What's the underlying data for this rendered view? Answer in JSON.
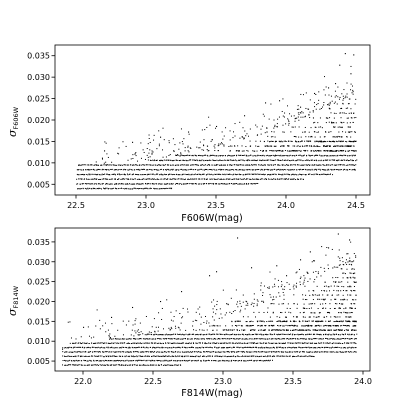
{
  "chart_data": [
    {
      "type": "scatter",
      "title": "",
      "xlabel": "F606W(mag)",
      "ylabel_symbol": "σ",
      "ylabel_subscript": "F606W",
      "xlim": [
        22.35,
        24.6
      ],
      "ylim": [
        0.0025,
        0.0375
      ],
      "xticks": [
        "22.5",
        "23.0",
        "23.5",
        "24.0",
        "24.5"
      ],
      "yticks": [
        "0.005",
        "0.010",
        "0.015",
        "0.020",
        "0.025",
        "0.030",
        "0.035"
      ],
      "grid": false,
      "marker_color": "#000000",
      "x_range_data": [
        22.5,
        24.5
      ],
      "sigma_floor": [
        [
          22.5,
          0.004
        ],
        [
          23.0,
          0.004
        ],
        [
          23.5,
          0.0048
        ],
        [
          24.0,
          0.0058
        ],
        [
          24.5,
          0.0085
        ]
      ],
      "sigma_ceiling": [
        [
          22.5,
          0.0095
        ],
        [
          23.0,
          0.0105
        ],
        [
          23.5,
          0.0135
        ],
        [
          24.0,
          0.0185
        ],
        [
          24.5,
          0.026
        ]
      ],
      "outliers": [
        [
          24.42,
          0.0355
        ],
        [
          24.48,
          0.0352
        ],
        [
          24.38,
          0.0328
        ],
        [
          24.46,
          0.0308
        ],
        [
          24.35,
          0.0285
        ],
        [
          24.3,
          0.0275
        ],
        [
          24.2,
          0.0262
        ],
        [
          23.95,
          0.0245
        ],
        [
          23.85,
          0.024
        ],
        [
          24.1,
          0.023
        ],
        [
          23.7,
          0.021
        ],
        [
          23.5,
          0.0185
        ],
        [
          23.3,
          0.0172
        ],
        [
          23.1,
          0.016
        ],
        [
          22.9,
          0.0148
        ],
        [
          22.7,
          0.0128
        ]
      ]
    },
    {
      "type": "scatter",
      "title": "",
      "xlabel": "F814W(mag)",
      "ylabel_symbol": "σ",
      "ylabel_subscript": "F814W",
      "xlim": [
        21.8,
        24.05
      ],
      "ylim": [
        0.0025,
        0.0385
      ],
      "xticks": [
        "22.0",
        "22.5",
        "23.0",
        "23.5",
        "24.0"
      ],
      "yticks": [
        "0.005",
        "0.010",
        "0.015",
        "0.020",
        "0.025",
        "0.030",
        "0.035"
      ],
      "grid": false,
      "marker_color": "#000000",
      "x_range_data": [
        21.85,
        23.95
      ],
      "sigma_floor": [
        [
          21.9,
          0.004
        ],
        [
          22.4,
          0.004
        ],
        [
          22.9,
          0.0045
        ],
        [
          23.4,
          0.0055
        ],
        [
          23.9,
          0.0075
        ]
      ],
      "sigma_ceiling": [
        [
          21.9,
          0.0095
        ],
        [
          22.4,
          0.0115
        ],
        [
          22.9,
          0.0145
        ],
        [
          23.4,
          0.021
        ],
        [
          23.9,
          0.03
        ]
      ],
      "outliers": [
        [
          23.82,
          0.037
        ],
        [
          23.9,
          0.0355
        ],
        [
          23.75,
          0.0335
        ],
        [
          23.62,
          0.0325
        ],
        [
          23.55,
          0.0305
        ],
        [
          23.38,
          0.029
        ],
        [
          23.2,
          0.0285
        ],
        [
          23.1,
          0.036
        ],
        [
          22.95,
          0.0275
        ],
        [
          22.9,
          0.0265
        ],
        [
          23.45,
          0.0265
        ],
        [
          22.7,
          0.0225
        ],
        [
          22.55,
          0.02
        ],
        [
          22.35,
          0.0185
        ],
        [
          22.2,
          0.016
        ],
        [
          22.0,
          0.0135
        ],
        [
          21.85,
          0.008
        ]
      ]
    }
  ]
}
